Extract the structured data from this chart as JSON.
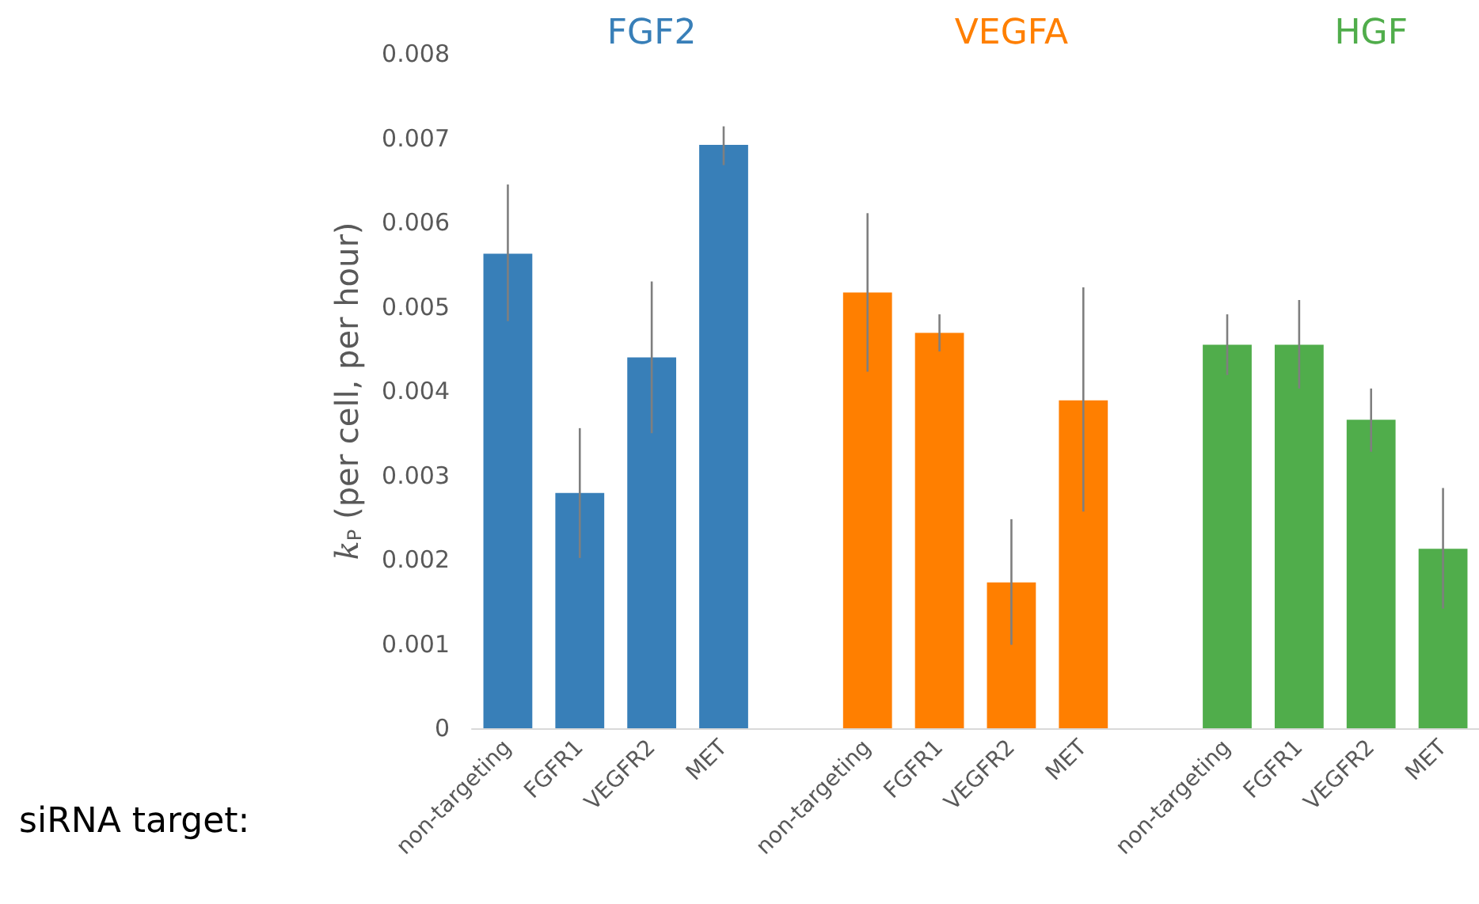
{
  "chart_data": {
    "type": "bar",
    "categories": [
      "non-targeting",
      "FGFR1",
      "VEGFR2",
      "MET",
      null,
      "non-targeting",
      "FGFR1",
      "VEGFR2",
      "MET",
      null,
      "non-targeting",
      "FGFR1",
      "VEGFR2",
      "MET"
    ],
    "series": [
      {
        "name": "FGF2",
        "color": "#387fb8",
        "values": [
          0.00563,
          0.00279,
          0.0044,
          0.00692,
          null,
          null,
          null,
          null,
          null,
          null,
          null,
          null,
          null,
          null
        ],
        "errors": [
          [
            0.00483,
            0.00645
          ],
          [
            0.00202,
            0.00356
          ],
          [
            0.0035,
            0.0053
          ],
          [
            0.00668,
            0.00714
          ],
          null,
          null,
          null,
          null,
          null,
          null,
          null,
          null,
          null,
          null
        ]
      },
      {
        "name": "VEGFA",
        "color": "#ff7f00",
        "values": [
          null,
          null,
          null,
          null,
          null,
          0.00517,
          0.00469,
          0.00173,
          0.00389,
          null,
          null,
          null,
          null,
          null
        ],
        "errors": [
          null,
          null,
          null,
          null,
          null,
          [
            0.00423,
            0.00611
          ],
          [
            0.00447,
            0.00491
          ],
          [
            0.00099,
            0.00248
          ],
          [
            0.00257,
            0.00523
          ],
          null,
          null,
          null,
          null,
          null
        ]
      },
      {
        "name": "HGF",
        "color": "#50ad4b",
        "values": [
          null,
          null,
          null,
          null,
          null,
          null,
          null,
          null,
          null,
          null,
          0.00455,
          0.00455,
          0.00366,
          0.00213
        ],
        "errors": [
          null,
          null,
          null,
          null,
          null,
          null,
          null,
          null,
          null,
          null,
          [
            0.00419,
            0.00491
          ],
          [
            0.00403,
            0.00508
          ],
          [
            0.00328,
            0.00403
          ],
          [
            0.00142,
            0.00285
          ]
        ]
      }
    ],
    "xlabel": "siRNA target:",
    "ylabel": "k$_{P}$ (per cell, per hour)",
    "ylim": [
      0,
      0.008
    ],
    "yticks": [
      0,
      0.001,
      0.002,
      0.003,
      0.004,
      0.005,
      0.006,
      0.007,
      0.008
    ],
    "grid": false,
    "legend": false
  }
}
